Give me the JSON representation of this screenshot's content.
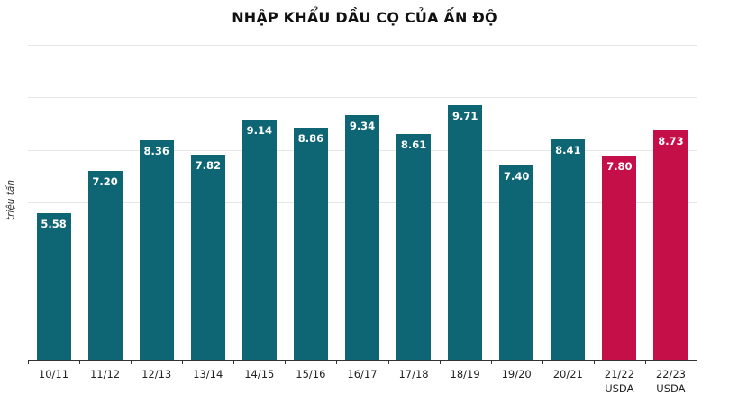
{
  "chart_data": {
    "type": "bar",
    "title": "NHẬP KHẨU DẦU CỌ CỦA ẤN ĐỘ",
    "xlabel": "",
    "ylabel": "triệu tấn",
    "ylim": [
      0,
      12
    ],
    "grid": true,
    "categories": [
      "10/11",
      "11/12",
      "12/13",
      "13/14",
      "14/15",
      "15/16",
      "16/17",
      "17/18",
      "18/19",
      "19/20",
      "20/21",
      "21/22 USDA",
      "22/23 USDA"
    ],
    "values": [
      5.58,
      7.2,
      8.36,
      7.82,
      9.14,
      8.86,
      9.34,
      8.61,
      9.71,
      7.4,
      8.41,
      7.8,
      8.73
    ],
    "value_labels": [
      "5.58",
      "7.20",
      "8.36",
      "7.82",
      "9.14",
      "8.86",
      "9.34",
      "8.61",
      "9.71",
      "7.40",
      "8.41",
      "7.80",
      "8.73"
    ],
    "category_lines": [
      [
        "10/11"
      ],
      [
        "11/12"
      ],
      [
        "12/13"
      ],
      [
        "13/14"
      ],
      [
        "14/15"
      ],
      [
        "15/16"
      ],
      [
        "16/17"
      ],
      [
        "17/18"
      ],
      [
        "18/19"
      ],
      [
        "19/20"
      ],
      [
        "20/21"
      ],
      [
        "21/22",
        "USDA"
      ],
      [
        "22/23",
        "USDA"
      ]
    ],
    "bar_colors": [
      "#0e6675",
      "#0e6675",
      "#0e6675",
      "#0e6675",
      "#0e6675",
      "#0e6675",
      "#0e6675",
      "#0e6675",
      "#0e6675",
      "#0e6675",
      "#0e6675",
      "#c50f49",
      "#c50f49"
    ],
    "colors": {
      "actual": "#0e6675",
      "forecast": "#c50f49"
    }
  }
}
